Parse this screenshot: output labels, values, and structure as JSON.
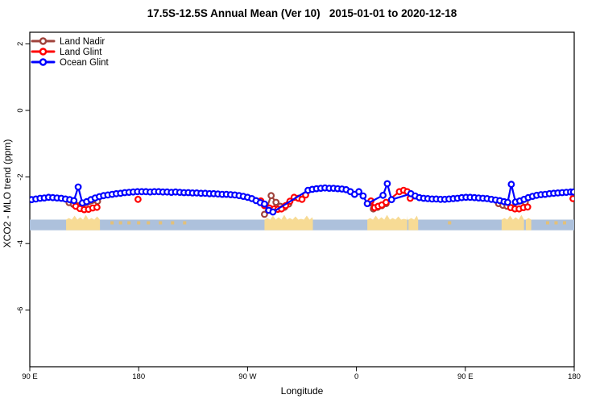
{
  "title": "17.5S-12.5S Annual Mean (Ver 10)   2015-01-01 to 2020-12-18",
  "chart_data": {
    "type": "line",
    "title": "17.5S-12.5S Annual Mean (Ver 10)   2015-01-01 to 2020-12-18",
    "xlabel": "Longitude",
    "ylabel": "XCO2 - MLO trend (ppm)",
    "grid": false,
    "x_axis": {
      "tick_labels": [
        "90 E",
        "180",
        "90 W",
        "0",
        "90 E",
        "180"
      ],
      "tick_values_deg": [
        90,
        180,
        270,
        360,
        450,
        540
      ],
      "range_deg": [
        90,
        540
      ],
      "note": "longitude axis wraps: 90E eastward through 180, 90W, 0, 90E to 180"
    },
    "y_axis": {
      "tick_labels": [
        "2",
        "0",
        "-2",
        "-4",
        "-6"
      ],
      "tick_values": [
        2,
        0,
        -2,
        -4,
        -6
      ],
      "range": [
        2.35,
        -7.7
      ]
    },
    "legend": {
      "position": "top-left",
      "entries": [
        {
          "label": "Land Nadir",
          "color": "#A0433C"
        },
        {
          "label": "Land Glint",
          "color": "#FF0000"
        },
        {
          "label": "Ocean Glint",
          "color": "#0000FF"
        }
      ]
    },
    "series": [
      {
        "name": "Land Nadir",
        "color": "#A0433C",
        "marker": "open-circle",
        "segments": [
          [
            [
              122.5,
              -2.77
            ],
            [
              126,
              -2.82
            ],
            [
              129.5,
              -2.86
            ],
            [
              133,
              -2.89
            ],
            [
              146,
              -2.73
            ]
          ],
          [
            [
              284,
              -3.12
            ],
            [
              289.5,
              -2.56
            ],
            [
              293.5,
              -2.76
            ],
            [
              297,
              -2.88
            ],
            [
              300.5,
              -2.91
            ],
            [
              304,
              -2.81
            ]
          ],
          [
            [
              371,
              -2.78
            ],
            [
              374,
              -2.96
            ],
            [
              377.5,
              -2.91
            ],
            [
              381,
              -2.86
            ],
            [
              384.5,
              -2.8
            ]
          ],
          [
            [
              477.5,
              -2.8
            ],
            [
              481,
              -2.85
            ],
            [
              484.5,
              -2.88
            ],
            [
              499.5,
              -2.76
            ]
          ]
        ]
      },
      {
        "name": "Land Glint",
        "color": "#FF0000",
        "marker": "open-circle",
        "segments": [
          [
            [
              128,
              -2.88
            ],
            [
              131.5,
              -2.95
            ],
            [
              135,
              -2.98
            ],
            [
              138.5,
              -2.97
            ],
            [
              142,
              -2.93
            ],
            [
              145.5,
              -2.91
            ]
          ],
          [
            [
              179.5,
              -2.67
            ]
          ],
          [
            [
              281,
              -2.72
            ],
            [
              284,
              -2.86
            ],
            [
              288,
              -2.93
            ],
            [
              292,
              -2.96
            ],
            [
              295,
              -2.97
            ],
            [
              298,
              -2.96
            ],
            [
              301.5,
              -2.86
            ],
            [
              305,
              -2.73
            ],
            [
              308.5,
              -2.61
            ],
            [
              312,
              -2.64
            ],
            [
              315,
              -2.67
            ],
            [
              318,
              -2.54
            ]
          ],
          [
            [
              372,
              -2.72
            ],
            [
              375,
              -2.92
            ],
            [
              378,
              -2.88
            ],
            [
              381,
              -2.84
            ],
            [
              384.5,
              -2.76
            ],
            [
              395.5,
              -2.44
            ],
            [
              399,
              -2.4
            ],
            [
              402,
              -2.44
            ],
            [
              404.5,
              -2.64
            ]
          ],
          [
            [
              487.5,
              -2.92
            ],
            [
              491,
              -2.96
            ],
            [
              494.5,
              -2.96
            ],
            [
              498,
              -2.92
            ],
            [
              501.5,
              -2.9
            ]
          ],
          [
            [
              539,
              -2.65
            ]
          ]
        ]
      },
      {
        "name": "Ocean Glint",
        "color": "#0000FF",
        "marker": "open-circle",
        "segments": [
          [
            [
              91.5,
              -2.68
            ],
            [
              95,
              -2.66
            ],
            [
              98.5,
              -2.64
            ],
            [
              102,
              -2.63
            ],
            [
              105.5,
              -2.61
            ],
            [
              109,
              -2.62
            ],
            [
              112.5,
              -2.63
            ],
            [
              116,
              -2.64
            ],
            [
              119.5,
              -2.66
            ],
            [
              123,
              -2.68
            ],
            [
              126.5,
              -2.71
            ],
            [
              130,
              -2.3
            ],
            [
              133.5,
              -2.78
            ],
            [
              137,
              -2.74
            ],
            [
              140.5,
              -2.68
            ],
            [
              144,
              -2.63
            ],
            [
              147.5,
              -2.59
            ],
            [
              151,
              -2.56
            ],
            [
              154.5,
              -2.54
            ],
            [
              158,
              -2.52
            ],
            [
              161.5,
              -2.5
            ],
            [
              165,
              -2.49
            ],
            [
              168.5,
              -2.47
            ],
            [
              172,
              -2.46
            ],
            [
              175.5,
              -2.45
            ],
            [
              179,
              -2.44
            ],
            [
              182.5,
              -2.44
            ],
            [
              186,
              -2.44
            ],
            [
              189.5,
              -2.45
            ],
            [
              193,
              -2.44
            ],
            [
              196.5,
              -2.44
            ],
            [
              200,
              -2.45
            ],
            [
              203.5,
              -2.45
            ],
            [
              207,
              -2.46
            ],
            [
              210.5,
              -2.45
            ],
            [
              214,
              -2.46
            ],
            [
              217.5,
              -2.47
            ],
            [
              221,
              -2.47
            ],
            [
              224.5,
              -2.48
            ],
            [
              228,
              -2.48
            ],
            [
              231.5,
              -2.49
            ],
            [
              235,
              -2.49
            ],
            [
              238.5,
              -2.5
            ],
            [
              242,
              -2.5
            ],
            [
              245.5,
              -2.51
            ],
            [
              249,
              -2.52
            ],
            [
              252.5,
              -2.52
            ],
            [
              256,
              -2.53
            ],
            [
              259.5,
              -2.54
            ],
            [
              263,
              -2.56
            ],
            [
              266.5,
              -2.58
            ],
            [
              270,
              -2.61
            ],
            [
              273.5,
              -2.65
            ],
            [
              277,
              -2.71
            ],
            [
              280.5,
              -2.77
            ],
            [
              284,
              -2.81
            ],
            [
              287.5,
              -3.0
            ],
            [
              291,
              -3.05
            ],
            [
              320,
              -2.4
            ],
            [
              323.5,
              -2.37
            ],
            [
              327,
              -2.35
            ],
            [
              330.5,
              -2.34
            ],
            [
              334,
              -2.33
            ],
            [
              337.5,
              -2.34
            ],
            [
              341,
              -2.34
            ],
            [
              344.5,
              -2.35
            ],
            [
              348,
              -2.36
            ],
            [
              351.5,
              -2.38
            ],
            [
              355,
              -2.44
            ],
            [
              358.5,
              -2.52
            ],
            [
              362,
              -2.44
            ],
            [
              365.5,
              -2.57
            ],
            [
              369,
              -2.8
            ],
            [
              382,
              -2.55
            ],
            [
              385.5,
              -2.2
            ],
            [
              389,
              -2.68
            ],
            [
              405,
              -2.5
            ],
            [
              408.5,
              -2.57
            ],
            [
              412,
              -2.62
            ],
            [
              415.5,
              -2.64
            ],
            [
              419,
              -2.65
            ],
            [
              422.5,
              -2.66
            ],
            [
              426,
              -2.66
            ],
            [
              429.5,
              -2.67
            ],
            [
              433,
              -2.67
            ],
            [
              436.5,
              -2.66
            ],
            [
              440,
              -2.65
            ],
            [
              443.5,
              -2.64
            ],
            [
              447,
              -2.62
            ],
            [
              450.5,
              -2.61
            ],
            [
              454,
              -2.61
            ],
            [
              457.5,
              -2.62
            ],
            [
              461,
              -2.63
            ],
            [
              464.5,
              -2.64
            ],
            [
              468,
              -2.65
            ],
            [
              471.5,
              -2.67
            ],
            [
              475,
              -2.69
            ],
            [
              478.5,
              -2.71
            ],
            [
              482,
              -2.74
            ],
            [
              485,
              -2.76
            ],
            [
              488,
              -2.22
            ],
            [
              491.5,
              -2.75
            ],
            [
              495,
              -2.72
            ],
            [
              498.5,
              -2.67
            ],
            [
              502,
              -2.62
            ],
            [
              505.5,
              -2.58
            ],
            [
              509,
              -2.55
            ],
            [
              512.5,
              -2.53
            ],
            [
              516,
              -2.52
            ],
            [
              519.5,
              -2.5
            ],
            [
              523,
              -2.49
            ],
            [
              526.5,
              -2.48
            ],
            [
              530,
              -2.47
            ],
            [
              533.5,
              -2.46
            ],
            [
              537,
              -2.45
            ],
            [
              539.5,
              -2.45
            ]
          ]
        ]
      }
    ],
    "map_strip": {
      "description": "land/ocean strip for the 17.5S-12.5S latitude band",
      "ocean_color": "#ADC1DC",
      "land_color": "#F7DB95",
      "island_color": "#E2C07A",
      "band_ppm": [
        -3.28,
        -3.6
      ],
      "land_patches_deg": [
        [
          120,
          148
        ],
        [
          284,
          324
        ],
        [
          369,
          402
        ],
        [
          403,
          411
        ],
        [
          480,
          498.5
        ],
        [
          500,
          504.5
        ]
      ],
      "island_specks_deg": [
        158,
        165,
        172,
        180,
        188,
        198,
        208,
        218,
        437,
        518,
        525,
        532
      ]
    }
  }
}
